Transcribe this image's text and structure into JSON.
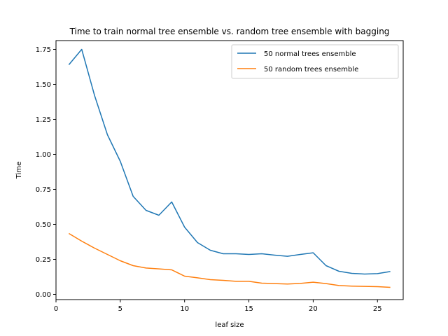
{
  "chart_data": {
    "type": "line",
    "title": "Time to train normal tree ensemble vs. random tree ensemble with bagging",
    "xlabel": "leaf size",
    "ylabel": "Time",
    "xlim": [
      0,
      27
    ],
    "ylim": [
      -0.0375,
      1.8125
    ],
    "xticks": [
      0,
      5,
      10,
      15,
      20,
      25
    ],
    "yticks": [
      0.0,
      0.25,
      0.5,
      0.75,
      1.0,
      1.25,
      1.5,
      1.75
    ],
    "xtick_labels": [
      "0",
      "5",
      "10",
      "15",
      "20",
      "25"
    ],
    "ytick_labels": [
      "0.00",
      "0.25",
      "0.50",
      "0.75",
      "1.00",
      "1.25",
      "1.50",
      "1.75"
    ],
    "grid": false,
    "legend_position": "top-right",
    "x": [
      1,
      2,
      3,
      4,
      5,
      6,
      7,
      8,
      9,
      10,
      11,
      12,
      13,
      14,
      15,
      16,
      17,
      18,
      19,
      20,
      21,
      22,
      23,
      24,
      25,
      26
    ],
    "series": [
      {
        "name": "50 normal trees ensemble",
        "color": "#1f77b4",
        "values": [
          1.64,
          1.75,
          1.42,
          1.14,
          0.95,
          0.7,
          0.6,
          0.565,
          0.66,
          0.48,
          0.37,
          0.315,
          0.29,
          0.29,
          0.285,
          0.29,
          0.28,
          0.272,
          0.285,
          0.297,
          0.205,
          0.165,
          0.15,
          0.145,
          0.148,
          0.163
        ]
      },
      {
        "name": "50 random trees ensemble",
        "color": "#ff7f0e",
        "values": [
          0.435,
          0.38,
          0.33,
          0.285,
          0.24,
          0.205,
          0.188,
          0.182,
          0.175,
          0.13,
          0.118,
          0.105,
          0.1,
          0.093,
          0.093,
          0.08,
          0.077,
          0.074,
          0.078,
          0.087,
          0.077,
          0.063,
          0.059,
          0.057,
          0.055,
          0.05
        ]
      }
    ]
  }
}
